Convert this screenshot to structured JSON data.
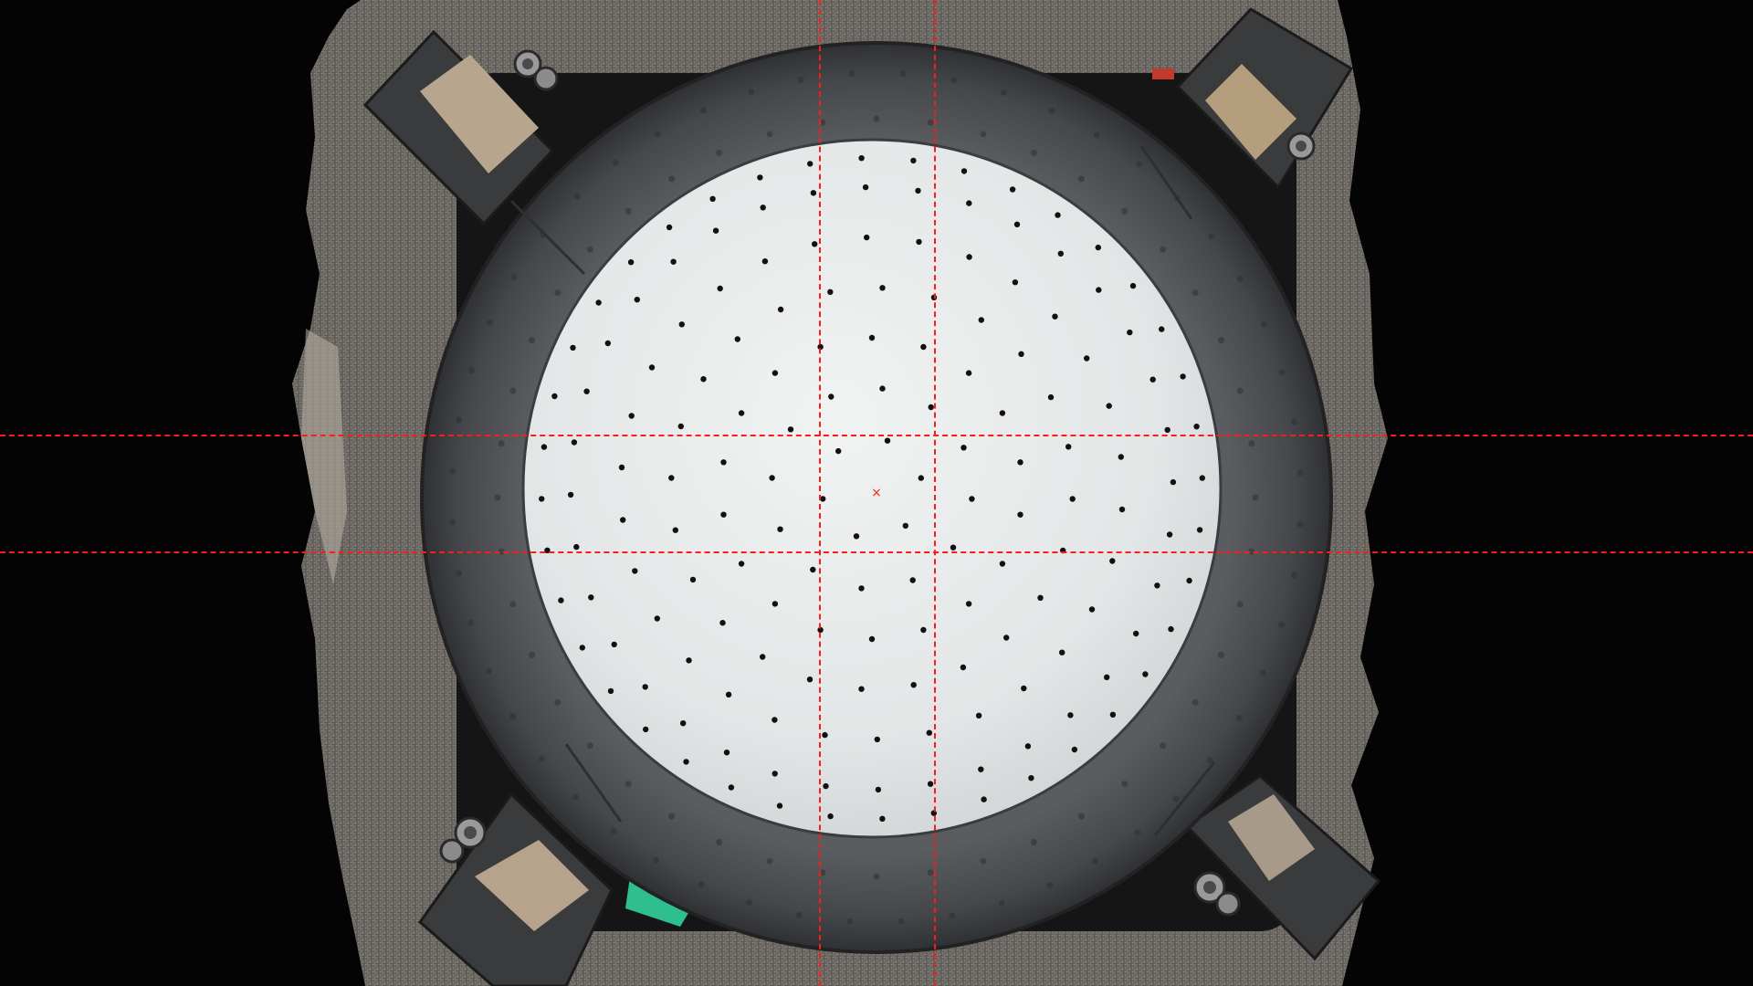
{
  "camera_view": {
    "background_color": "#040404",
    "fixture_color": "#6e6b66",
    "plate_ring_color": "#4a4c50",
    "wafer_color": "#e7eaea",
    "guide_line_color": "#ff1a1a",
    "center_marker_glyph": "×"
  }
}
